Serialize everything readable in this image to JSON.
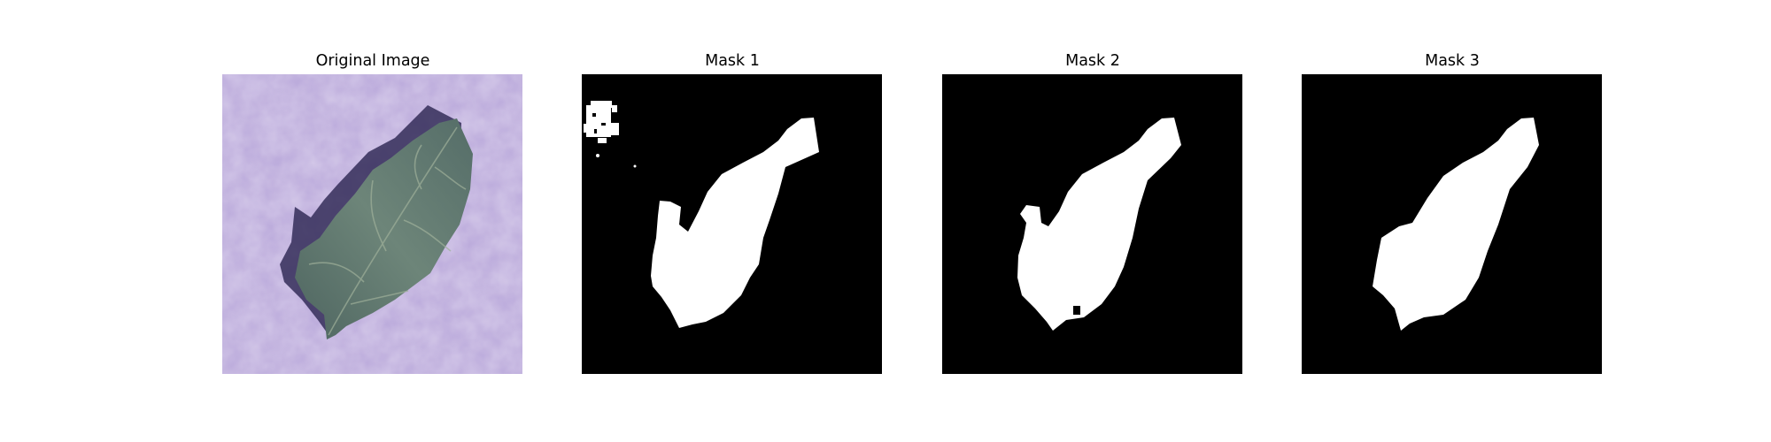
{
  "figure": {
    "panels": [
      {
        "title": "Original Image",
        "kind": "photo"
      },
      {
        "title": "Mask 1",
        "kind": "mask"
      },
      {
        "title": "Mask 2",
        "kind": "mask"
      },
      {
        "title": "Mask 3",
        "kind": "mask"
      }
    ]
  },
  "colors": {
    "background_texture": "#b8a6d9",
    "leaf": "#5b6f6a",
    "mask_background": "#000000",
    "mask_foreground": "#ffffff"
  }
}
